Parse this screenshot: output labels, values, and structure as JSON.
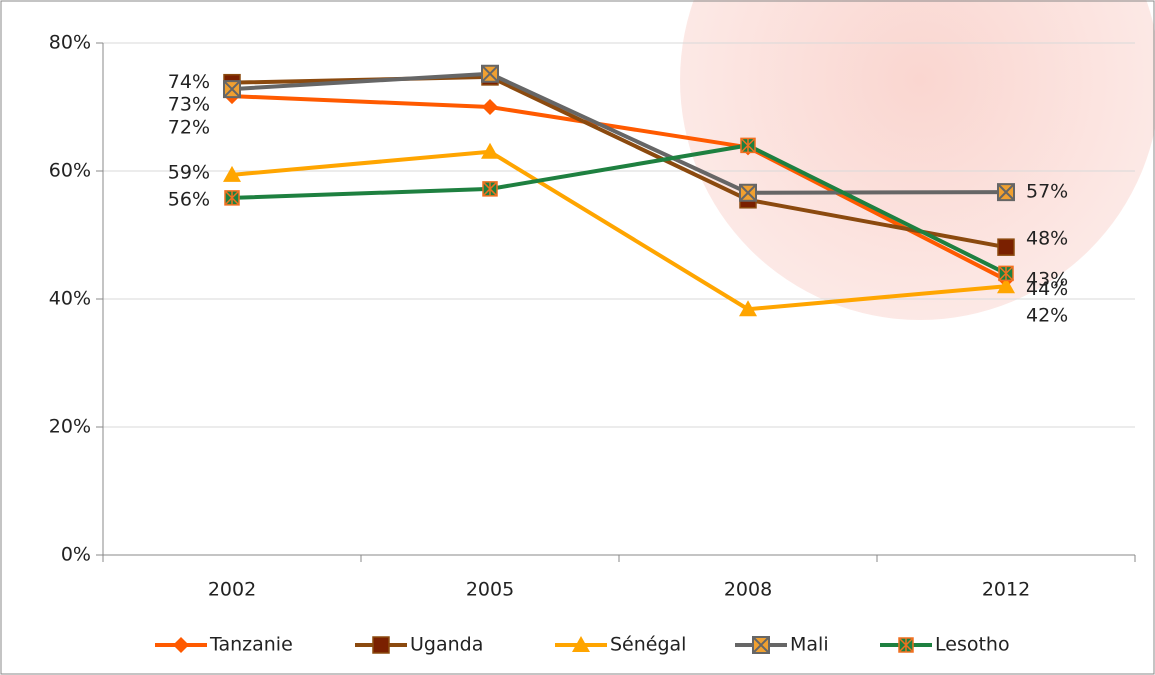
{
  "chart_data": {
    "type": "line",
    "categories": [
      "2002",
      "2005",
      "2008",
      "2012"
    ],
    "ylim": [
      0,
      80
    ],
    "yticks": [
      {
        "value": 0,
        "label": "0%"
      },
      {
        "value": 20,
        "label": "20%"
      },
      {
        "value": 40,
        "label": "40%"
      },
      {
        "value": 60,
        "label": "60%"
      },
      {
        "value": 80,
        "label": "80%"
      }
    ],
    "grid": true,
    "legend": "bottom",
    "series": [
      {
        "name": "Tanzanie",
        "color": "#ff5a00",
        "marker": "diamond",
        "values": [
          71.7,
          70,
          63.7,
          43
        ],
        "value_labels": [
          "72%",
          null,
          null,
          "43%"
        ]
      },
      {
        "name": "Uganda",
        "color": "#8b4a0f",
        "marker": "square",
        "values": [
          73.8,
          74.7,
          55.5,
          48.1
        ],
        "value_labels": [
          "74%",
          null,
          null,
          "48%"
        ]
      },
      {
        "name": "Sénégal",
        "color": "#ffa500",
        "marker": "triangle",
        "values": [
          59.4,
          63,
          38.4,
          42
        ],
        "value_labels": [
          "59%",
          null,
          null,
          "42%"
        ]
      },
      {
        "name": "Mali",
        "color": "#666666",
        "marker": "xsquare",
        "values": [
          72.8,
          75.2,
          56.6,
          56.7
        ],
        "value_labels": [
          "73%",
          null,
          null,
          "57%"
        ]
      },
      {
        "name": "Lesotho",
        "color": "#1e8040",
        "marker": "star",
        "values": [
          55.8,
          57.2,
          64,
          44
        ],
        "value_labels": [
          "56%",
          null,
          null,
          "44%"
        ]
      }
    ]
  }
}
